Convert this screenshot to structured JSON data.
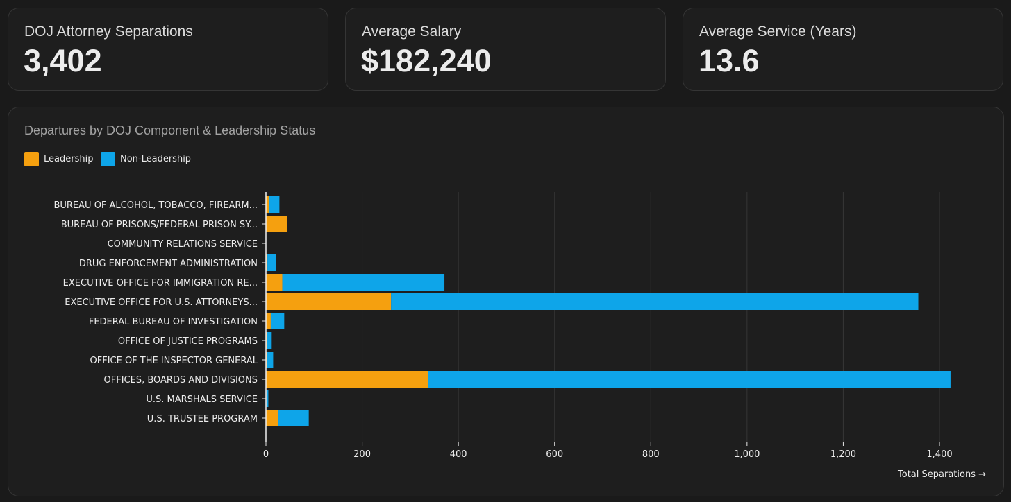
{
  "kpis": [
    {
      "label": "DOJ Attorney Separations",
      "value": "3,402"
    },
    {
      "label": "Average Salary",
      "value": "$182,240"
    },
    {
      "label": "Average Service (Years)",
      "value": "13.6"
    }
  ],
  "chart": {
    "title": "Departures by DOJ Component & Leadership Status"
  },
  "chart_data": {
    "type": "bar",
    "orientation": "horizontal",
    "stacked": true,
    "title": "Departures by DOJ Component & Leadership Status",
    "xlabel": "Total Separations →",
    "ylabel": "",
    "xlim": [
      0,
      1420
    ],
    "xticks": [
      0,
      200,
      400,
      600,
      800,
      1000,
      1200,
      1400
    ],
    "xtick_labels": [
      "0",
      "200",
      "400",
      "600",
      "800",
      "1,000",
      "1,200",
      "1,400"
    ],
    "grid": "vertical",
    "legend_position": "top-left",
    "categories": [
      "BUREAU OF ALCOHOL, TOBACCO, FIREARM...",
      "BUREAU OF PRISONS/FEDERAL PRISON SY...",
      "COMMUNITY RELATIONS SERVICE",
      "DRUG ENFORCEMENT ADMINISTRATION",
      "EXECUTIVE OFFICE FOR IMMIGRATION RE...",
      "EXECUTIVE OFFICE FOR U.S. ATTORNEYS...",
      "FEDERAL BUREAU OF INVESTIGATION",
      "OFFICE OF JUSTICE PROGRAMS",
      "OFFICE OF THE INSPECTOR GENERAL",
      "OFFICES, BOARDS AND DIVISIONS",
      "U.S. MARSHALS SERVICE",
      "U.S. TRUSTEE PROGRAM"
    ],
    "series": [
      {
        "name": "Leadership",
        "color": "#f5a00f",
        "values": [
          6,
          44,
          0,
          3,
          34,
          260,
          10,
          2,
          2,
          337,
          1,
          26
        ]
      },
      {
        "name": "Non-Leadership",
        "color": "#0ea5e9",
        "values": [
          22,
          0,
          0,
          18,
          337,
          1096,
          28,
          10,
          13,
          1086,
          4,
          63
        ]
      }
    ]
  }
}
